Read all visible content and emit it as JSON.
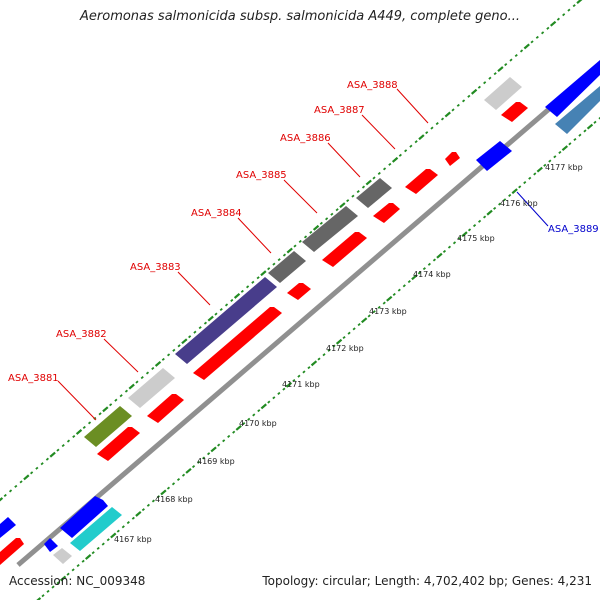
{
  "title": "Aeromonas salmonicida subsp. salmonicida A449, complete geno...",
  "footer": {
    "accession": "Accession: NC_009348",
    "summary": "Topology: circular; Length: 4,702,402 bp; Genes: 4,231"
  },
  "colors": {
    "backbone": "#909090",
    "tick": "#228b22",
    "gene_label_red": "#e00000",
    "gene_label_blue": "#0000cc",
    "red": "#ff0000",
    "blue": "#0000ff",
    "steelblue": "#4682b4",
    "cyan": "#22cccc",
    "lightgray": "#cccccc",
    "darkgray": "#666666",
    "slate": "#483d8b",
    "olive": "#6b8e23"
  },
  "ruler_labels": [
    "4167 kbp",
    "4168 kbp",
    "4169 kbp",
    "4170 kbp",
    "4171 kbp",
    "4172 kbp",
    "4173 kbp",
    "4174 kbp",
    "4175 kbp",
    "4176 kbp",
    "4177 kbp"
  ],
  "gene_labels": [
    {
      "text": "ASA_3881",
      "color": "red"
    },
    {
      "text": "ASA_3882",
      "color": "red"
    },
    {
      "text": "ASA_3883",
      "color": "red"
    },
    {
      "text": "ASA_3884",
      "color": "red"
    },
    {
      "text": "ASA_3885",
      "color": "red"
    },
    {
      "text": "ASA_3886",
      "color": "red"
    },
    {
      "text": "ASA_3887",
      "color": "red"
    },
    {
      "text": "ASA_3888",
      "color": "red"
    },
    {
      "text": "ASA_3889",
      "color": "blue"
    }
  ]
}
